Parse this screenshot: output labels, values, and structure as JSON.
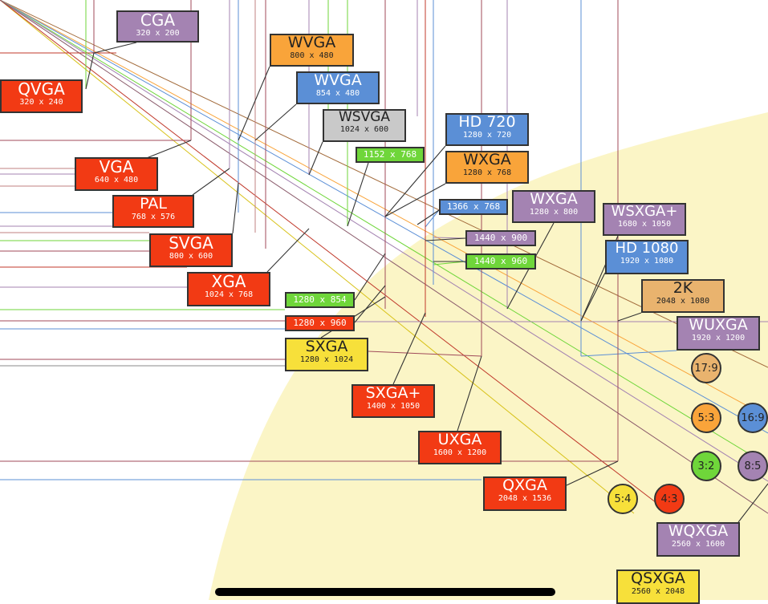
{
  "title": "",
  "colors": {
    "red": "#f23a14",
    "purple": "#a483b2",
    "blue": "#5b8fd6",
    "orange": "#f9a43a",
    "green": "#6fd63a",
    "grey": "#c9c9c9",
    "yellow": "#f7e03a",
    "tan": "#e9b36e",
    "region": "#fbf5c6"
  },
  "standards": [
    {
      "id": "cga",
      "name": "CGA",
      "res": "320 x 200",
      "color": "purple"
    },
    {
      "id": "qvga",
      "name": "QVGA",
      "res": "320 x 240",
      "color": "red"
    },
    {
      "id": "wvga-800",
      "name": "WVGA",
      "res": "800 x 480",
      "color": "orange"
    },
    {
      "id": "wvga-854",
      "name": "WVGA",
      "res": "854 x 480",
      "color": "blue"
    },
    {
      "id": "wsvga",
      "name": "WSVGA",
      "res": "1024 x 600",
      "color": "grey"
    },
    {
      "id": "hd720",
      "name": "HD 720",
      "res": "1280 x 720",
      "color": "blue"
    },
    {
      "id": "r1152x768",
      "name": "",
      "res": "1152 x 768",
      "color": "green"
    },
    {
      "id": "wxga-768",
      "name": "WXGA",
      "res": "1280 x 768",
      "color": "orange"
    },
    {
      "id": "vga",
      "name": "VGA",
      "res": "640 x 480",
      "color": "red"
    },
    {
      "id": "r1366x768",
      "name": "",
      "res": "1366 x 768",
      "color": "blue"
    },
    {
      "id": "wxga-800",
      "name": "WXGA",
      "res": "1280 x 800",
      "color": "purple"
    },
    {
      "id": "pal",
      "name": "PAL",
      "res": "768 x 576",
      "color": "red"
    },
    {
      "id": "wsxga",
      "name": "WSXGA+",
      "res": "1680 x 1050",
      "color": "purple"
    },
    {
      "id": "r1440x900",
      "name": "",
      "res": "1440 x 900",
      "color": "purple"
    },
    {
      "id": "svga",
      "name": "SVGA",
      "res": "800 x 600",
      "color": "red"
    },
    {
      "id": "r1440x960",
      "name": "",
      "res": "1440 x 960",
      "color": "green"
    },
    {
      "id": "hd1080",
      "name": "HD 1080",
      "res": "1920 x 1080",
      "color": "blue"
    },
    {
      "id": "xga",
      "name": "XGA",
      "res": "1024 x 768",
      "color": "red"
    },
    {
      "id": "twok",
      "name": "2K",
      "res": "2048 x 1080",
      "color": "tan"
    },
    {
      "id": "r1280x854",
      "name": "",
      "res": "1280 x 854",
      "color": "green"
    },
    {
      "id": "r1280x960",
      "name": "",
      "res": "1280 x 960",
      "color": "red"
    },
    {
      "id": "wuxga",
      "name": "WUXGA",
      "res": "1920 x 1200",
      "color": "purple"
    },
    {
      "id": "sxga",
      "name": "SXGA",
      "res": "1280 x 1024",
      "color": "yellow"
    },
    {
      "id": "sxgaplus",
      "name": "SXGA+",
      "res": "1400 x 1050",
      "color": "red"
    },
    {
      "id": "uxga",
      "name": "UXGA",
      "res": "1600 x 1200",
      "color": "red"
    },
    {
      "id": "qxga",
      "name": "QXGA",
      "res": "2048 x 1536",
      "color": "red"
    },
    {
      "id": "wqxga",
      "name": "WQXGA",
      "res": "2560 x 1600",
      "color": "purple"
    },
    {
      "id": "qsxga",
      "name": "QSXGA",
      "res": "2560 x 2048",
      "color": "yellow"
    }
  ],
  "ratios": [
    {
      "id": "r17-9",
      "label": "17:9",
      "color": "tan"
    },
    {
      "id": "r5-3",
      "label": "5:3",
      "color": "orange"
    },
    {
      "id": "r16-9",
      "label": "16:9",
      "color": "blue"
    },
    {
      "id": "r3-2",
      "label": "3:2",
      "color": "green"
    },
    {
      "id": "r8-5",
      "label": "8:5",
      "color": "purple"
    },
    {
      "id": "r5-4",
      "label": "5:4",
      "color": "yellow"
    },
    {
      "id": "r4-3",
      "label": "4:3",
      "color": "red"
    }
  ]
}
